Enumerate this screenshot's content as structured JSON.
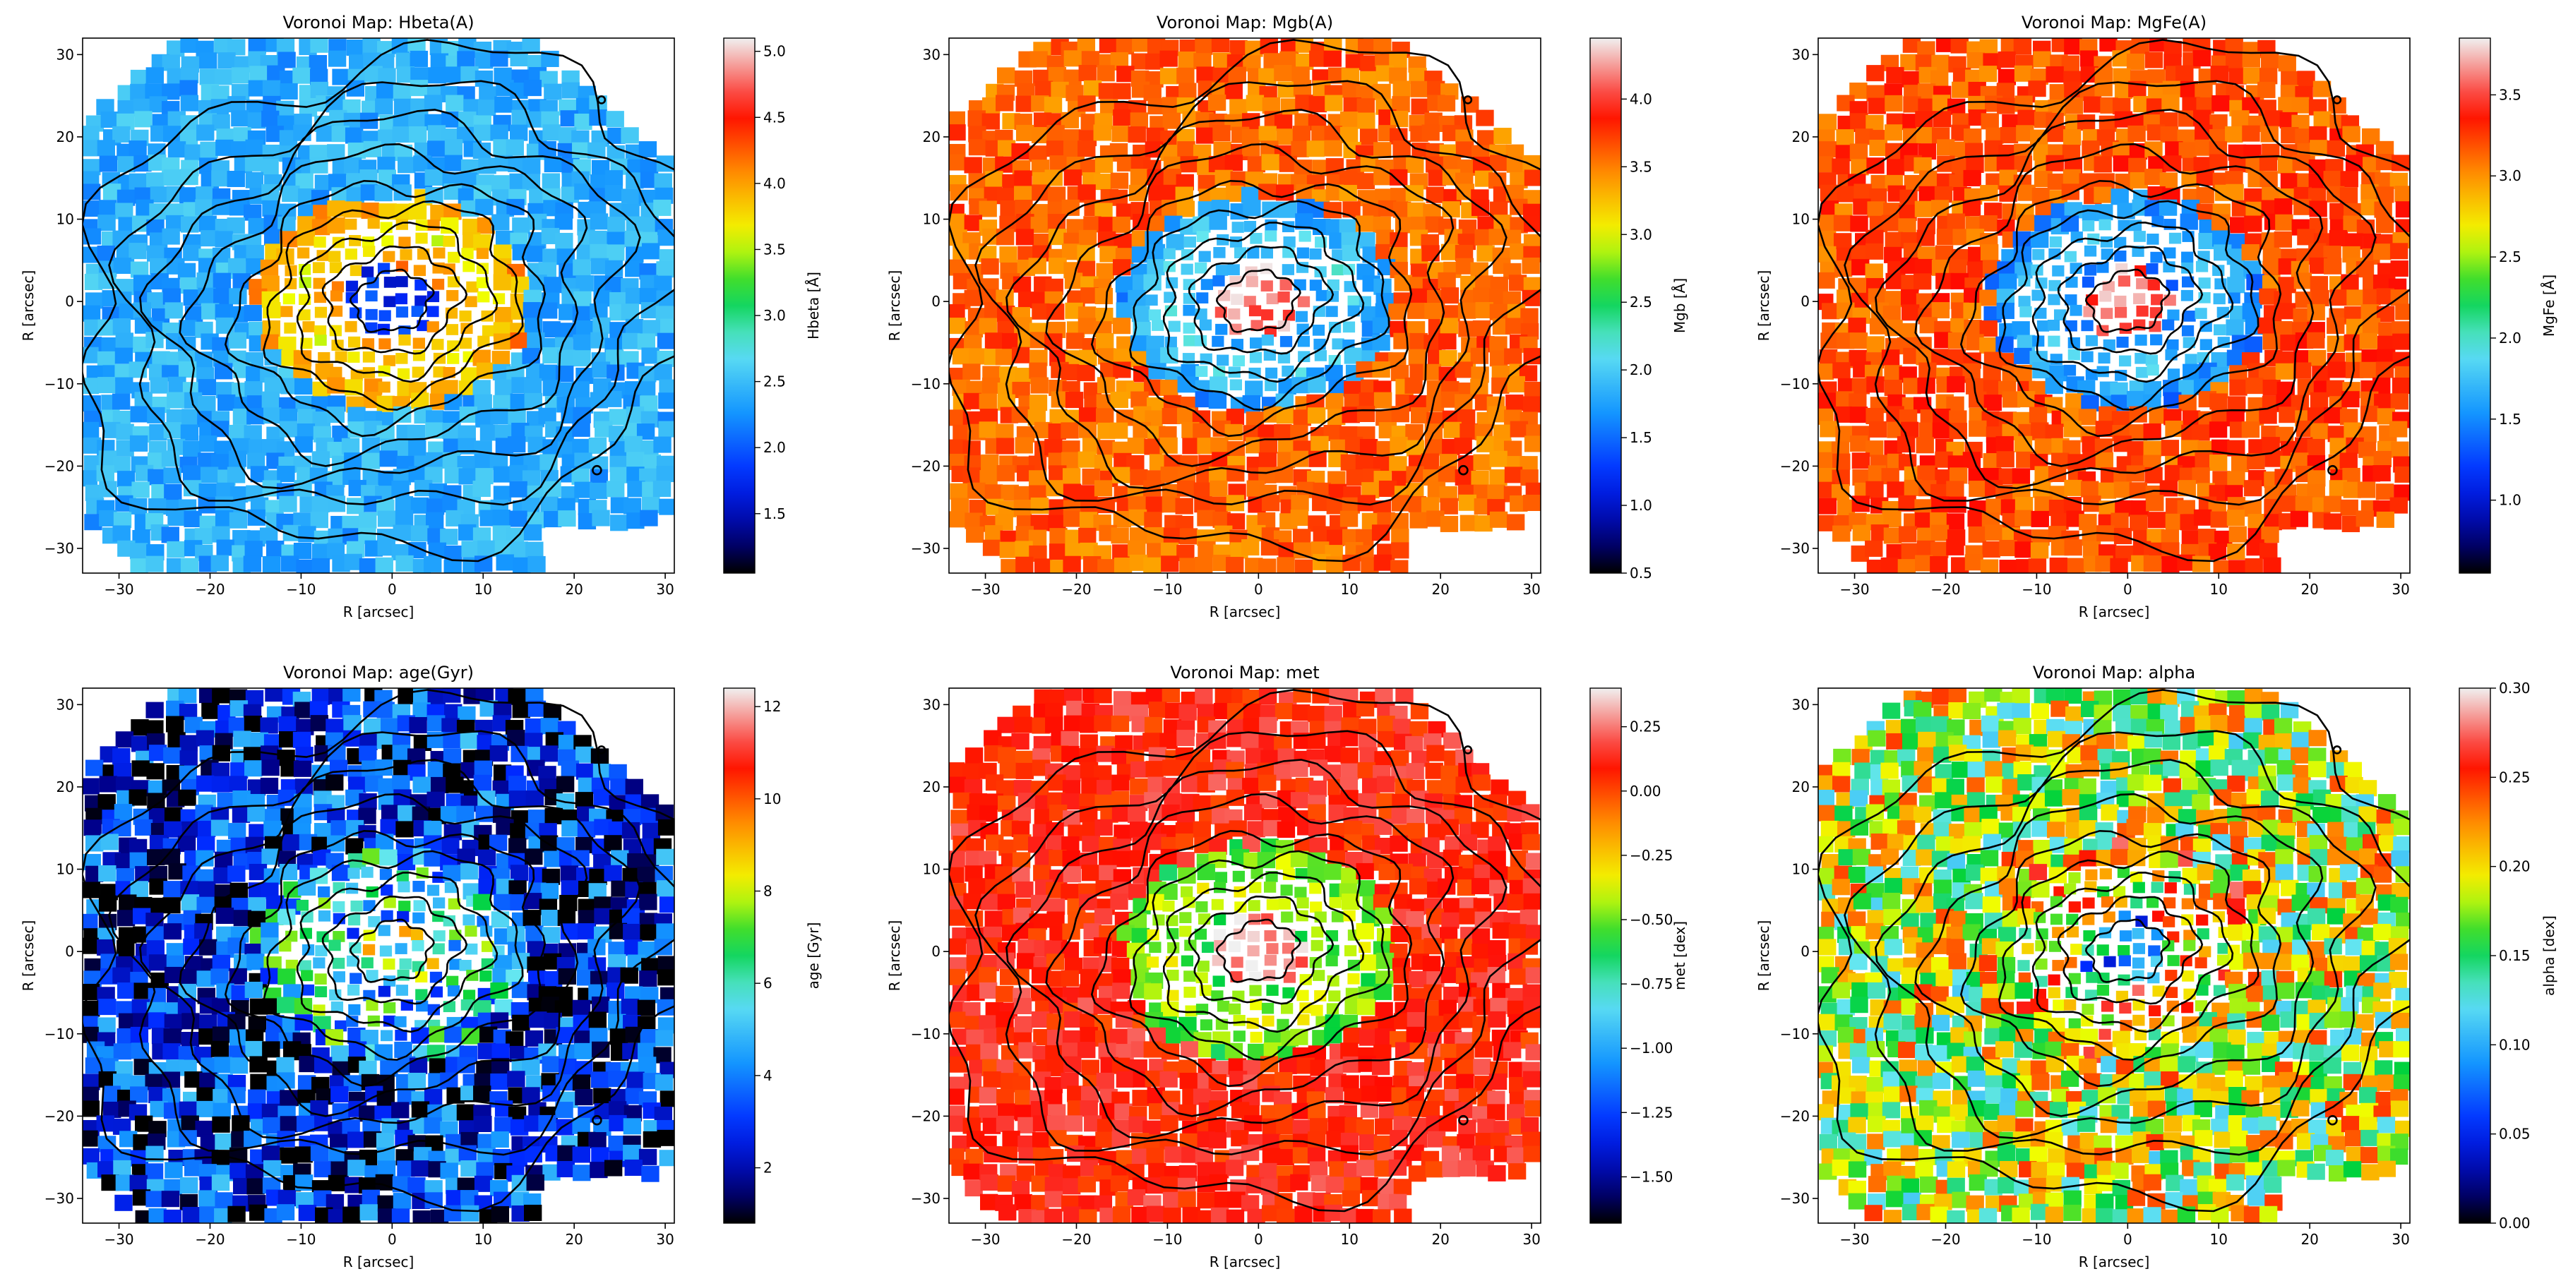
{
  "chart_data": [
    {
      "type": "heatmap",
      "title": "Voronoi Map: Hbeta(A)",
      "xlabel": "R [arcsec]",
      "ylabel": "R [arcsec]",
      "xlim": [
        -34,
        31
      ],
      "ylim": [
        -33,
        32
      ],
      "xticks": [
        -30,
        -20,
        -10,
        0,
        10,
        20,
        30
      ],
      "yticks": [
        30,
        20,
        10,
        0,
        -10,
        -20,
        -30
      ],
      "colormap": "jet-like",
      "colorbar_label": "Hbeta [Å]",
      "colorbar_range": [
        1.05,
        5.1
      ],
      "colorbar_ticks": [
        1.5,
        2.0,
        2.5,
        3.0,
        3.5,
        4.0,
        4.5,
        5.0
      ],
      "background_value": 2.4,
      "ring_value": 4.2,
      "center_value": 1.8,
      "contours": true
    },
    {
      "type": "heatmap",
      "title": "Voronoi Map: Mgb(A)",
      "xlabel": "R [arcsec]",
      "ylabel": "R [arcsec]",
      "xlim": [
        -34,
        31
      ],
      "ylim": [
        -33,
        32
      ],
      "xticks": [
        -30,
        -20,
        -10,
        0,
        10,
        20,
        30
      ],
      "yticks": [
        30,
        20,
        10,
        0,
        -10,
        -20,
        -30
      ],
      "colormap": "jet-like",
      "colorbar_label": "Mgb [Å]",
      "colorbar_range": [
        0.5,
        4.45
      ],
      "colorbar_ticks": [
        0.5,
        1.0,
        1.5,
        2.0,
        2.5,
        3.0,
        3.5,
        4.0
      ],
      "background_value": 3.6,
      "ring_value": 1.5,
      "center_value": 4.2,
      "contours": true
    },
    {
      "type": "heatmap",
      "title": "Voronoi Map: MgFe(A)",
      "xlabel": "R [arcsec]",
      "ylabel": "R [arcsec]",
      "xlim": [
        -34,
        31
      ],
      "ylim": [
        -33,
        32
      ],
      "xticks": [
        -30,
        -20,
        -10,
        0,
        10,
        20,
        30
      ],
      "yticks": [
        30,
        20,
        10,
        0,
        -10,
        -20,
        -30
      ],
      "colormap": "jet-like",
      "colorbar_label": "MgFe [Å]",
      "colorbar_range": [
        0.55,
        3.85
      ],
      "colorbar_ticks": [
        1.0,
        1.5,
        2.0,
        2.5,
        3.0,
        3.5
      ],
      "background_value": 3.2,
      "ring_value": 1.3,
      "center_value": 3.6,
      "contours": true
    },
    {
      "type": "heatmap",
      "title": "Voronoi Map: age(Gyr)",
      "xlabel": "R [arcsec]",
      "ylabel": "R [arcsec]",
      "xlim": [
        -34,
        31
      ],
      "ylim": [
        -33,
        32
      ],
      "xticks": [
        -30,
        -20,
        -10,
        0,
        10,
        20,
        30
      ],
      "yticks": [
        30,
        20,
        10,
        0,
        -10,
        -20,
        -30
      ],
      "colormap": "jet-like",
      "colorbar_label": "age [Gyr]",
      "colorbar_range": [
        0.8,
        12.4
      ],
      "colorbar_ticks": [
        2,
        4,
        6,
        8,
        10,
        12
      ],
      "background_value": 2.5,
      "ring_value": 5.0,
      "center_value": 7.0,
      "contours": true
    },
    {
      "type": "heatmap",
      "title": "Voronoi Map: met",
      "xlabel": "R [arcsec]",
      "ylabel": "R [arcsec]",
      "xlim": [
        -34,
        31
      ],
      "ylim": [
        -33,
        32
      ],
      "xticks": [
        -30,
        -20,
        -10,
        0,
        10,
        20,
        30
      ],
      "yticks": [
        30,
        20,
        10,
        0,
        -10,
        -20,
        -30
      ],
      "colormap": "jet-like",
      "colorbar_label": "met [dex]",
      "colorbar_range": [
        -1.68,
        0.4
      ],
      "colorbar_ticks": [
        0.25,
        0.0,
        -0.25,
        -0.5,
        -0.75,
        -1.0,
        -1.25,
        -1.5
      ],
      "tick_labels": [
        "0.25",
        "0.00",
        "−0.25",
        "−0.50",
        "−0.75",
        "−1.00",
        "−1.25",
        "−1.50"
      ],
      "background_value": 0.1,
      "ring_value": -0.6,
      "center_value": 0.3,
      "contours": true
    },
    {
      "type": "heatmap",
      "title": "Voronoi Map: alpha",
      "xlabel": "R [arcsec]",
      "ylabel": "R [arcsec]",
      "xlim": [
        -34,
        31
      ],
      "ylim": [
        -33,
        32
      ],
      "xticks": [
        -30,
        -20,
        -10,
        0,
        10,
        20,
        30
      ],
      "yticks": [
        30,
        20,
        10,
        0,
        -10,
        -20,
        -30
      ],
      "colormap": "jet-like",
      "colorbar_label": "alpha [dex]",
      "colorbar_range": [
        0.0,
        0.3
      ],
      "colorbar_ticks": [
        0.0,
        0.05,
        0.1,
        0.15,
        0.2,
        0.25,
        0.3
      ],
      "tick_labels": [
        "0.00",
        "0.05",
        "0.10",
        "0.15",
        "0.20",
        "0.25",
        "0.30"
      ],
      "background_value": 0.18,
      "ring_value": 0.22,
      "center_value": 0.1,
      "contours": true
    }
  ]
}
